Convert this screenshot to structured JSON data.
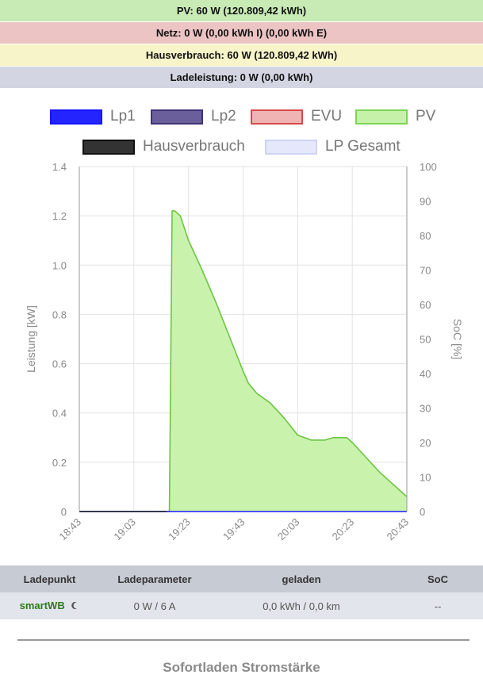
{
  "status": {
    "pv": {
      "text": "PV: 60 W (120.809,42 kWh)",
      "color": "#c8ebb5"
    },
    "netz": {
      "text": "Netz: 0 W (0,00 kWh I) (0,00 kWh E)",
      "color": "#ecc4c4"
    },
    "haus": {
      "text": "Hausverbrauch: 60 W (120.809,42 kWh)",
      "color": "#f7f4c9"
    },
    "lade": {
      "text": "Ladeleistung: 0 W (0,00 kWh)",
      "color": "#d3d6e2"
    }
  },
  "legend": [
    {
      "label": "Lp1",
      "fill": "#2424ff",
      "stroke": "#1616ff"
    },
    {
      "label": "Lp2",
      "fill": "#6a5f9a",
      "stroke": "#3f3275"
    },
    {
      "label": "EVU",
      "fill": "#f0b4b4",
      "stroke": "#d94848"
    },
    {
      "label": "PV",
      "fill": "#c5f2a8",
      "stroke": "#7ed356"
    },
    {
      "label": "Hausverbrauch",
      "fill": "#333333",
      "stroke": "#111111"
    },
    {
      "label": "LP Gesamt",
      "fill": "#e5e7fb",
      "stroke": "#cfd3f5"
    }
  ],
  "chart_data": {
    "type": "area",
    "xlabel": "",
    "ylabel": "Leistung [kW]",
    "y2label": "SoC [%]",
    "x_ticks": [
      "18:43",
      "19:03",
      "19:23",
      "19:43",
      "20:03",
      "20:23",
      "20:43"
    ],
    "ylim": [
      0,
      1.4
    ],
    "y_ticks": [
      "0",
      "0.2",
      "0.4",
      "0.6",
      "0.8",
      "1.0",
      "1.2",
      "1.4"
    ],
    "y2lim": [
      0,
      100
    ],
    "y2_ticks": [
      "0",
      "10",
      "20",
      "30",
      "40",
      "50",
      "60",
      "70",
      "80",
      "90",
      "100"
    ],
    "grid": true,
    "legend_position": "top",
    "series": [
      {
        "name": "PV",
        "x": [
          "18:43",
          "19:15",
          "19:16",
          "19:17",
          "19:18",
          "19:20",
          "19:23",
          "19:28",
          "19:33",
          "19:38",
          "19:43",
          "19:45",
          "19:48",
          "19:53",
          "19:58",
          "20:03",
          "20:08",
          "20:13",
          "20:16",
          "20:18",
          "20:21",
          "20:23",
          "20:28",
          "20:33",
          "20:38",
          "20:42",
          "20:43"
        ],
        "values": [
          0,
          0,
          0,
          1.22,
          1.22,
          1.2,
          1.1,
          0.98,
          0.85,
          0.71,
          0.57,
          0.52,
          0.48,
          0.44,
          0.38,
          0.31,
          0.29,
          0.29,
          0.3,
          0.3,
          0.3,
          0.28,
          0.22,
          0.16,
          0.11,
          0.07,
          0.06
        ]
      },
      {
        "name": "Lp1",
        "x": [
          "18:43",
          "20:43"
        ],
        "values": [
          0,
          0
        ]
      },
      {
        "name": "Hausverbrauch",
        "x": [
          "18:43",
          "19:15"
        ],
        "values": [
          0,
          0
        ]
      }
    ]
  },
  "table": {
    "headers": [
      "Ladepunkt",
      "Ladeparameter",
      "geladen",
      "SoC"
    ],
    "row": {
      "name": "smartWB",
      "name_icon": "moon-icon",
      "params": "0 W / 6 A",
      "charged": "0,0 kWh / 0,0 km",
      "soc": "--"
    }
  },
  "section_title": "Sofortladen Stromstärke"
}
